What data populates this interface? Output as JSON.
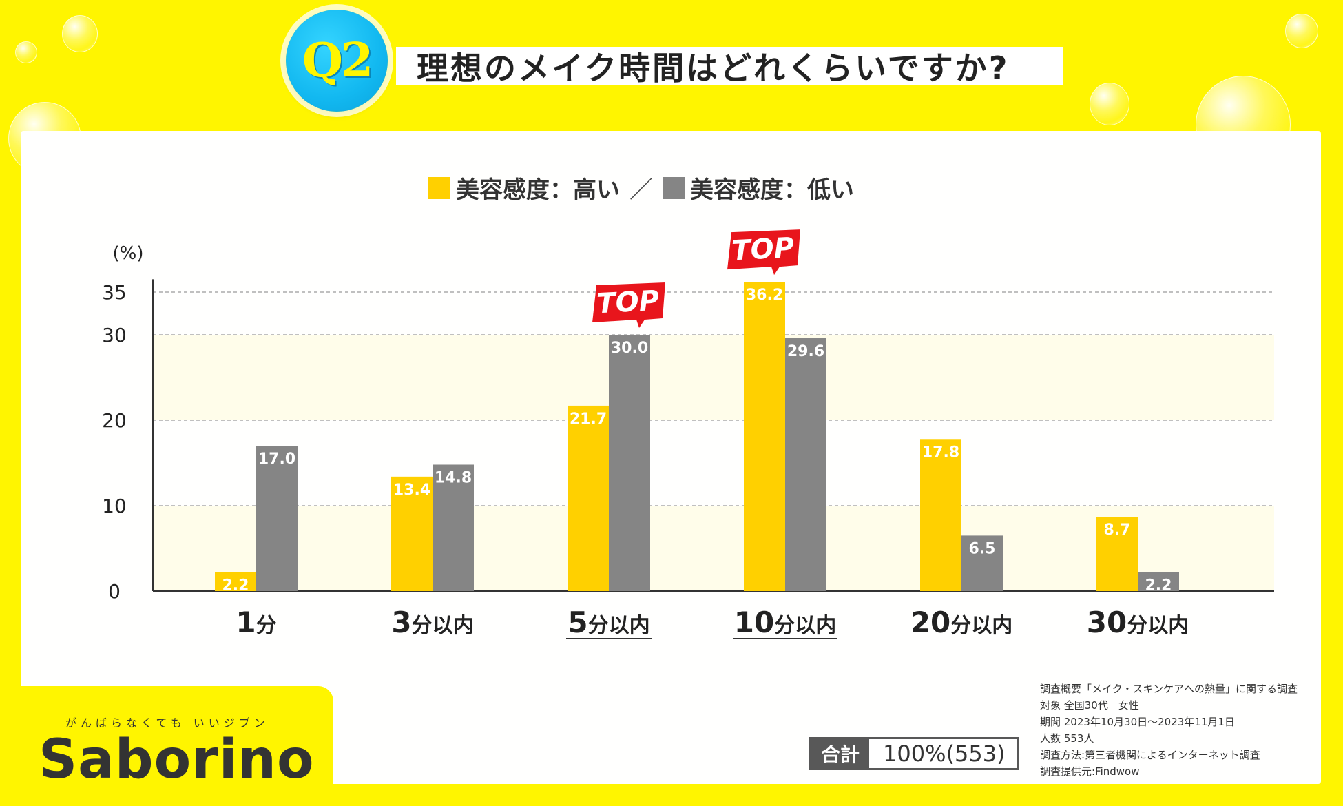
{
  "header": {
    "badge": "Q2",
    "title": "理想のメイク時間はどれくらいですか?"
  },
  "colors": {
    "high": "#ffd000",
    "low": "#858585",
    "accent_badge": "#12b8f0",
    "top_flag": "#e8151c"
  },
  "chart_data": {
    "type": "bar",
    "categories": [
      "1分",
      "3分以内",
      "5分以内",
      "10分以内",
      "20分以内",
      "30分以内"
    ],
    "series": [
      {
        "name": "美容感度：高い",
        "values": [
          2.2,
          13.4,
          21.7,
          36.2,
          17.8,
          8.7
        ]
      },
      {
        "name": "美容感度：低い",
        "values": [
          17.0,
          14.8,
          30.0,
          29.6,
          6.5,
          2.2
        ]
      }
    ],
    "ylabel": "(%)",
    "yticks": [
      0,
      10,
      20,
      30,
      35
    ],
    "ylim": [
      0,
      36.5
    ],
    "grid": true,
    "legend": "top-center",
    "top_markers": [
      {
        "category": "5分以内",
        "series": "美容感度：低い",
        "label": "TOP"
      },
      {
        "category": "10分以内",
        "series": "美容感度：高い",
        "label": "TOP"
      }
    ],
    "underlined_categories": [
      "5分以内",
      "10分以内"
    ]
  },
  "legend": {
    "separator": "／"
  },
  "total": {
    "label": "合計",
    "value": "100%(553)"
  },
  "survey": [
    "調査概要「メイク・スキンケアへの熱量」に関する調査",
    "対象 全国30代　女性",
    "期間 2023年10月30日～2023年11月1日",
    "人数 553人",
    "調査方法:第三者機関によるインターネット調査",
    "調査提供元:Findwow"
  ],
  "brand": {
    "tagline": "がんばらなくても いいジブン",
    "logo": "Saborino"
  }
}
